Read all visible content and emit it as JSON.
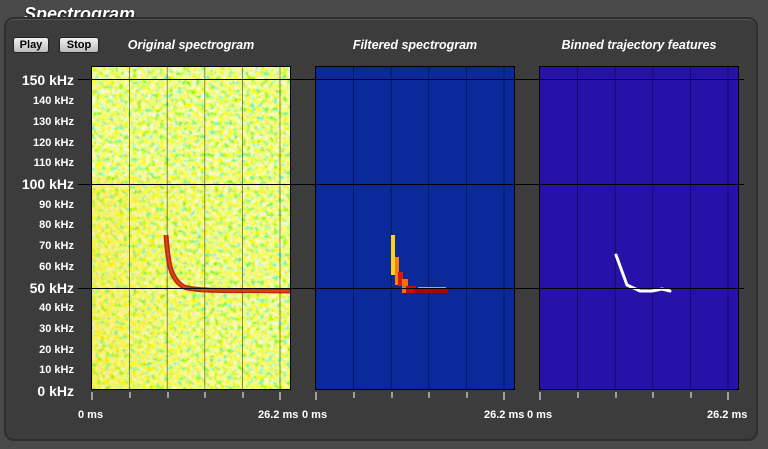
{
  "window": {
    "title": "Spectrogram"
  },
  "controls": {
    "play_label": "Play",
    "stop_label": "Stop"
  },
  "plots": [
    {
      "title": "Original spectrogram"
    },
    {
      "title": "Filtered spectrogram"
    },
    {
      "title": "Binned trajectory features"
    }
  ],
  "y_axis": {
    "labels": [
      "150 kHz",
      "140 kHz",
      "130 kHz",
      "120 kHz",
      "110 kHz",
      "100 kHz",
      "90 kHz",
      "80 kHz",
      "70 kHz",
      "60 kHz",
      "50 kHz",
      "40 kHz",
      "30 kHz",
      "20 kHz",
      "10 kHz",
      "0 kHz"
    ]
  },
  "x_axis": {
    "start_label": "0 ms",
    "end_label": "26.2 ms"
  },
  "colors": {
    "filtered_bg": "#0a2a9a",
    "binned_bg": "#2612a8",
    "call_red": "#b01010"
  }
}
